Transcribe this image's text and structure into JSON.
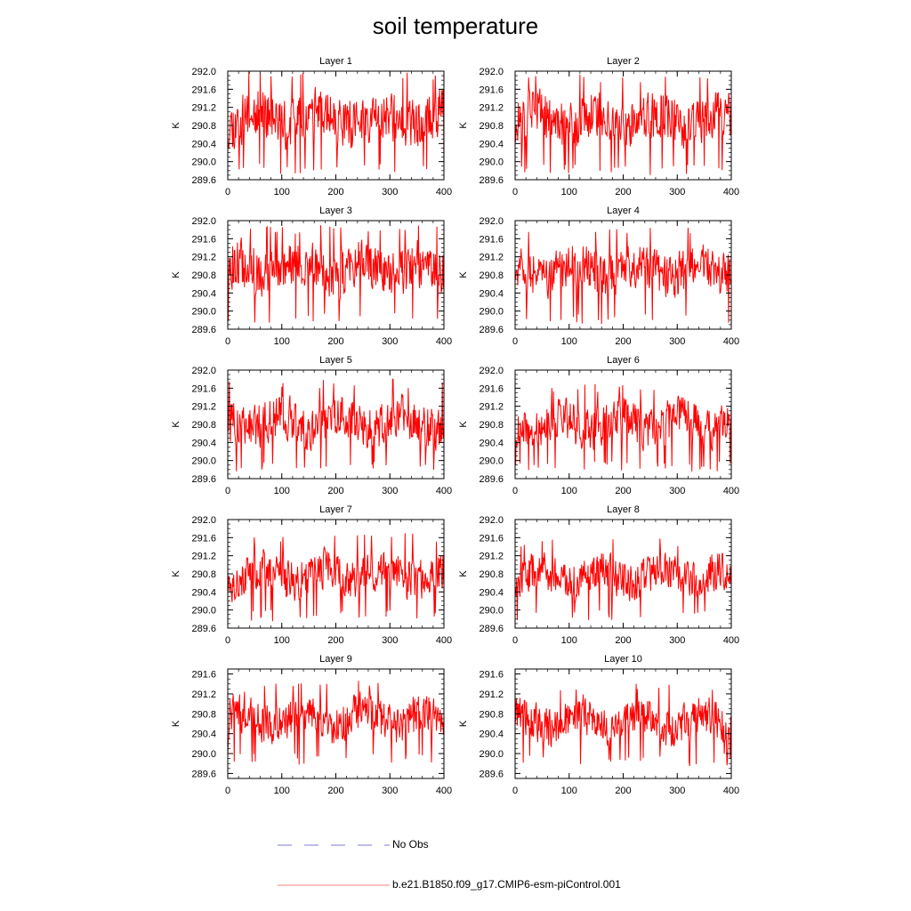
{
  "title": "soil temperature",
  "legend": [
    {
      "label": "No Obs",
      "color": "#7b7bd6",
      "style": "dashed"
    },
    {
      "label": "b.e21.B1850.f09_g17.CMIP6-esm-piControl.001",
      "color": "#f08080",
      "style": "solid"
    }
  ],
  "line_color": "#ff0000",
  "chart_data": [
    {
      "type": "line",
      "title": "Layer 1",
      "xlabel": "",
      "ylabel": "K",
      "xlim": [
        0,
        400
      ],
      "ylim": [
        289.6,
        292.0
      ],
      "xticks": [
        "0",
        "100",
        "200",
        "300",
        "400"
      ],
      "yticks": [
        "289.6",
        "290.0",
        "290.4",
        "290.8",
        "291.2",
        "291.6",
        "292.0"
      ],
      "series": [
        {
          "mean": 290.95,
          "amp": 0.42,
          "min": 289.7,
          "max": 292.0,
          "x": [
            0,
            400
          ],
          "seed": 11
        }
      ]
    },
    {
      "type": "line",
      "title": "Layer 2",
      "xlabel": "",
      "ylabel": "K",
      "xlim": [
        0,
        400
      ],
      "ylim": [
        289.6,
        292.0
      ],
      "xticks": [
        "0",
        "100",
        "200",
        "300",
        "400"
      ],
      "yticks": [
        "289.6",
        "290.0",
        "290.4",
        "290.8",
        "291.2",
        "291.6",
        "292.0"
      ],
      "series": [
        {
          "mean": 290.93,
          "amp": 0.4,
          "min": 289.7,
          "max": 291.95,
          "x": [
            0,
            400
          ],
          "seed": 12
        }
      ]
    },
    {
      "type": "line",
      "title": "Layer 3",
      "xlabel": "",
      "ylabel": "K",
      "xlim": [
        0,
        400
      ],
      "ylim": [
        289.6,
        292.0
      ],
      "xticks": [
        "0",
        "100",
        "200",
        "300",
        "400"
      ],
      "yticks": [
        "289.6",
        "290.0",
        "290.4",
        "290.8",
        "291.2",
        "291.6",
        "292.0"
      ],
      "series": [
        {
          "mean": 290.92,
          "amp": 0.4,
          "min": 289.7,
          "max": 291.9,
          "x": [
            0,
            400
          ],
          "seed": 13
        }
      ]
    },
    {
      "type": "line",
      "title": "Layer 4",
      "xlabel": "",
      "ylabel": "K",
      "xlim": [
        0,
        400
      ],
      "ylim": [
        289.6,
        292.0
      ],
      "xticks": [
        "0",
        "100",
        "200",
        "300",
        "400"
      ],
      "yticks": [
        "289.6",
        "290.0",
        "290.4",
        "290.8",
        "291.2",
        "291.6",
        "292.0"
      ],
      "series": [
        {
          "mean": 290.9,
          "amp": 0.38,
          "min": 289.7,
          "max": 291.85,
          "x": [
            0,
            400
          ],
          "seed": 14
        }
      ]
    },
    {
      "type": "line",
      "title": "Layer 5",
      "xlabel": "",
      "ylabel": "K",
      "xlim": [
        0,
        400
      ],
      "ylim": [
        289.6,
        292.0
      ],
      "xticks": [
        "0",
        "100",
        "200",
        "300",
        "400"
      ],
      "yticks": [
        "289.6",
        "290.0",
        "290.4",
        "290.8",
        "291.2",
        "291.6",
        "292.0"
      ],
      "series": [
        {
          "mean": 290.85,
          "amp": 0.37,
          "min": 289.75,
          "max": 291.8,
          "x": [
            0,
            400
          ],
          "seed": 15
        }
      ]
    },
    {
      "type": "line",
      "title": "Layer 6",
      "xlabel": "",
      "ylabel": "K",
      "xlim": [
        0,
        400
      ],
      "ylim": [
        289.6,
        292.0
      ],
      "xticks": [
        "0",
        "100",
        "200",
        "300",
        "400"
      ],
      "yticks": [
        "289.6",
        "290.0",
        "290.4",
        "290.8",
        "291.2",
        "291.6",
        "292.0"
      ],
      "series": [
        {
          "mean": 290.82,
          "amp": 0.35,
          "min": 289.75,
          "max": 291.7,
          "x": [
            0,
            400
          ],
          "seed": 16
        }
      ]
    },
    {
      "type": "line",
      "title": "Layer 7",
      "xlabel": "",
      "ylabel": "K",
      "xlim": [
        0,
        400
      ],
      "ylim": [
        289.6,
        292.0
      ],
      "xticks": [
        "0",
        "100",
        "200",
        "300",
        "400"
      ],
      "yticks": [
        "289.6",
        "290.0",
        "290.4",
        "290.8",
        "291.2",
        "291.6",
        "292.0"
      ],
      "series": [
        {
          "mean": 290.78,
          "amp": 0.34,
          "min": 289.75,
          "max": 291.7,
          "x": [
            0,
            400
          ],
          "seed": 17
        }
      ]
    },
    {
      "type": "line",
      "title": "Layer 8",
      "xlabel": "",
      "ylabel": "K",
      "xlim": [
        0,
        400
      ],
      "ylim": [
        289.6,
        292.0
      ],
      "xticks": [
        "0",
        "100",
        "200",
        "300",
        "400"
      ],
      "yticks": [
        "289.6",
        "290.0",
        "290.4",
        "290.8",
        "291.2",
        "291.6",
        "292.0"
      ],
      "series": [
        {
          "mean": 290.75,
          "amp": 0.32,
          "min": 289.75,
          "max": 291.6,
          "x": [
            0,
            400
          ],
          "seed": 18
        }
      ]
    },
    {
      "type": "line",
      "title": "Layer 9",
      "xlabel": "",
      "ylabel": "K",
      "xlim": [
        0,
        400
      ],
      "ylim": [
        289.5,
        291.7
      ],
      "xticks": [
        "0",
        "100",
        "200",
        "300",
        "400"
      ],
      "yticks": [
        "289.6",
        "290.0",
        "290.4",
        "290.8",
        "291.2",
        "291.6"
      ],
      "series": [
        {
          "mean": 290.7,
          "amp": 0.31,
          "min": 289.75,
          "max": 291.55,
          "x": [
            0,
            400
          ],
          "seed": 19
        }
      ]
    },
    {
      "type": "line",
      "title": "Layer 10",
      "xlabel": "",
      "ylabel": "K",
      "xlim": [
        0,
        400
      ],
      "ylim": [
        289.5,
        291.7
      ],
      "xticks": [
        "0",
        "100",
        "200",
        "300",
        "400"
      ],
      "yticks": [
        "289.6",
        "290.0",
        "290.4",
        "290.8",
        "291.2",
        "291.6"
      ],
      "series": [
        {
          "mean": 290.65,
          "amp": 0.3,
          "min": 289.75,
          "max": 291.45,
          "x": [
            0,
            400
          ],
          "seed": 20
        }
      ]
    }
  ]
}
